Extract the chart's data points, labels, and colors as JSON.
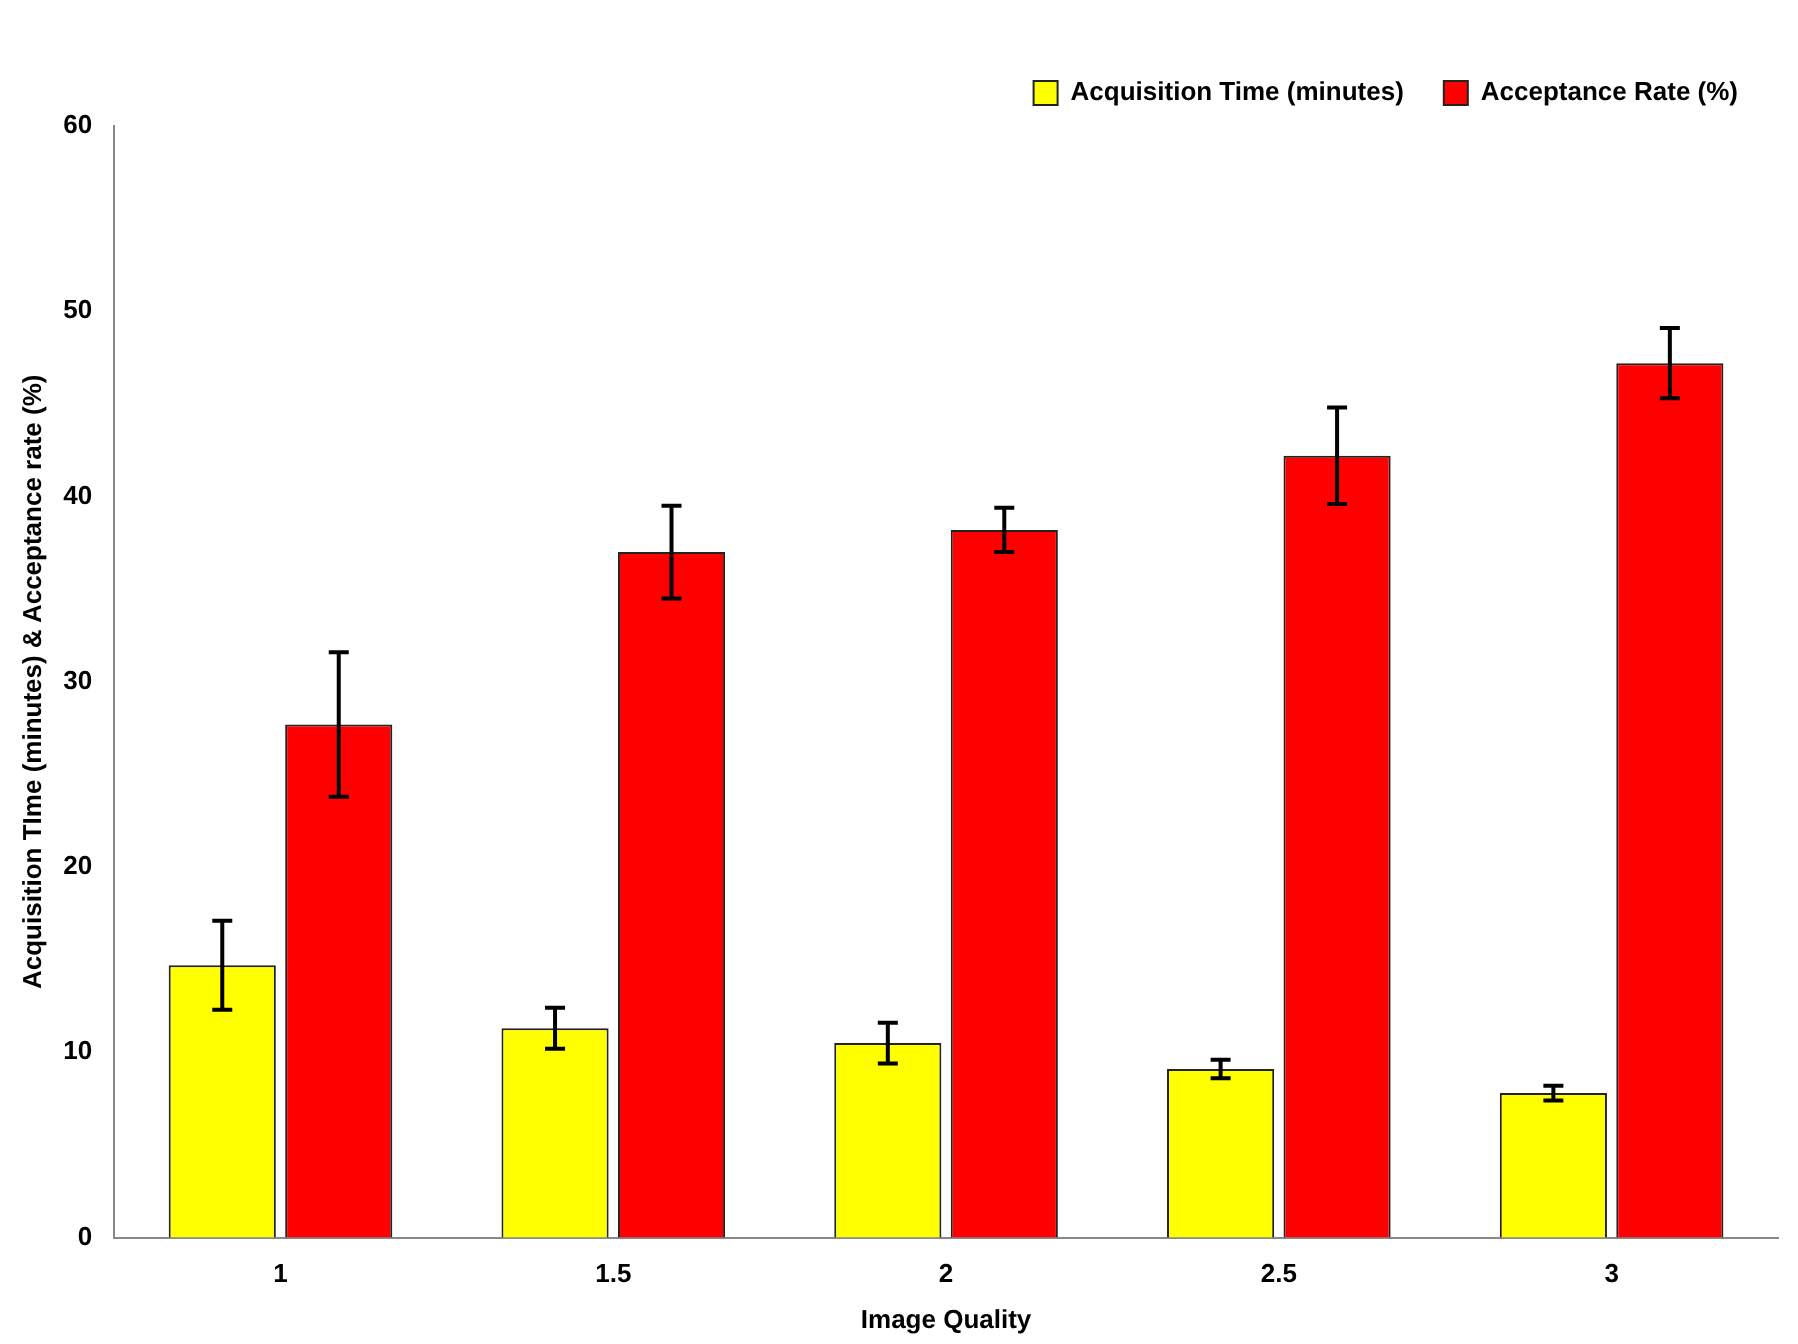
{
  "chart_data": {
    "type": "bar",
    "xlabel": "Image Quality",
    "ylabel": "Acquisition TIme (minutes) & Acceptance rate (%)",
    "categories": [
      "1",
      "1.5",
      "2",
      "2.5",
      "3"
    ],
    "series": [
      {
        "name": "Acquisition Time (minutes)",
        "color": "#ffff00",
        "values": [
          14.7,
          11.3,
          10.5,
          9.1,
          7.8
        ],
        "errors": [
          2.4,
          1.1,
          1.1,
          0.5,
          0.4
        ]
      },
      {
        "name": "Acceptance Rate (%)",
        "color": "#ff0000",
        "values": [
          27.7,
          37,
          38.2,
          42.2,
          47.2
        ],
        "errors": [
          3.9,
          2.5,
          1.2,
          2.6,
          1.9
        ]
      }
    ],
    "ylim": [
      0,
      60
    ],
    "yticks": [
      0,
      10,
      20,
      30,
      40,
      50,
      60
    ],
    "grid": false,
    "legend": "top right"
  }
}
